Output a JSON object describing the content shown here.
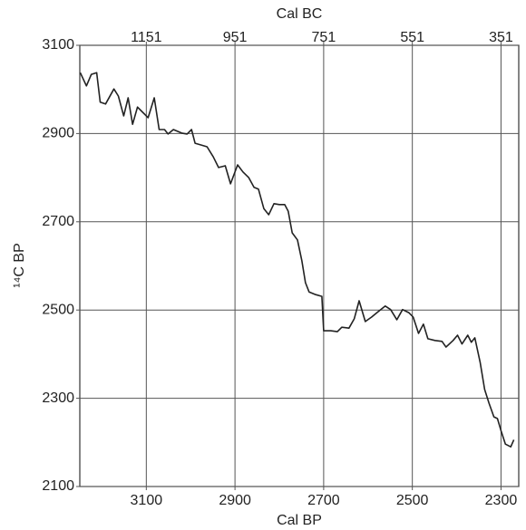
{
  "chart_data": {
    "type": "line",
    "x_label": "Cal BP",
    "x2_label": "Cal BC",
    "y_label": "¹⁴C BP",
    "xlim": [
      3250,
      2260
    ],
    "ylim": [
      2100,
      3100
    ],
    "xticks": [
      3100,
      2900,
      2700,
      2500,
      2300
    ],
    "x2ticks": [
      {
        "value": 3100,
        "label": "1151"
      },
      {
        "value": 2900,
        "label": "951"
      },
      {
        "value": 2700,
        "label": "751"
      },
      {
        "value": 2500,
        "label": "551"
      },
      {
        "value": 2300,
        "label": "351"
      }
    ],
    "yticks": [
      2100,
      2300,
      2500,
      2700,
      2900,
      3100
    ],
    "grid": true,
    "series": [
      {
        "color": "#222222",
        "x": [
          3249,
          3235,
          3224,
          3212,
          3204,
          3192,
          3173,
          3163,
          3151,
          3141,
          3131,
          3120,
          3108,
          3096,
          3082,
          3071,
          3059,
          3051,
          3039,
          3020,
          3008,
          2998,
          2990,
          2976,
          2963,
          2949,
          2937,
          2922,
          2910,
          2894,
          2882,
          2869,
          2857,
          2847,
          2835,
          2824,
          2812,
          2800,
          2788,
          2780,
          2771,
          2759,
          2749,
          2741,
          2733,
          2718,
          2704,
          2700,
          2684,
          2669,
          2659,
          2643,
          2631,
          2620,
          2606,
          2592,
          2580,
          2561,
          2549,
          2535,
          2522,
          2508,
          2498,
          2486,
          2475,
          2465,
          2449,
          2433,
          2424,
          2408,
          2398,
          2388,
          2375,
          2367,
          2359,
          2347,
          2337,
          2327,
          2316,
          2308,
          2300,
          2290,
          2278,
          2271
        ],
        "values": [
          3038,
          3008,
          3034,
          3038,
          2971,
          2967,
          3001,
          2985,
          2940,
          2981,
          2921,
          2960,
          2948,
          2936,
          2981,
          2909,
          2909,
          2899,
          2909,
          2901,
          2899,
          2909,
          2878,
          2874,
          2870,
          2847,
          2823,
          2827,
          2786,
          2829,
          2813,
          2800,
          2778,
          2774,
          2730,
          2716,
          2741,
          2739,
          2739,
          2724,
          2675,
          2659,
          2611,
          2562,
          2541,
          2535,
          2531,
          2453,
          2453,
          2451,
          2461,
          2459,
          2480,
          2521,
          2474,
          2484,
          2494,
          2509,
          2501,
          2478,
          2501,
          2494,
          2484,
          2447,
          2468,
          2435,
          2431,
          2429,
          2416,
          2431,
          2443,
          2423,
          2443,
          2427,
          2437,
          2381,
          2320,
          2289,
          2258,
          2254,
          2227,
          2196,
          2190,
          2206
        ]
      }
    ]
  }
}
